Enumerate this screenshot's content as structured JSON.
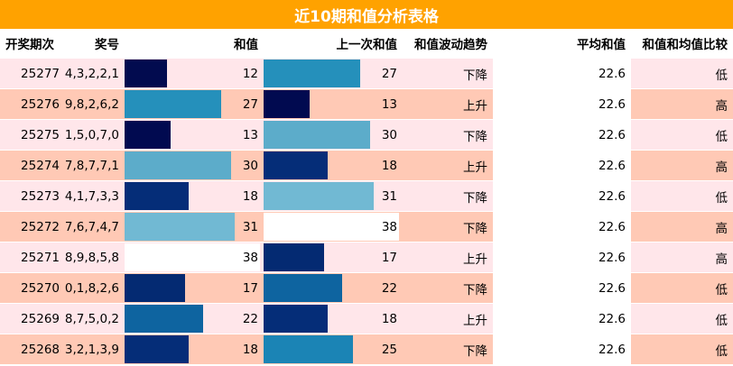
{
  "title": "近10期和值分析表格",
  "colors": {
    "title_bg": "#ffa200",
    "row_light": "#ffe6ea",
    "row_dark": "#ffc9b5",
    "bar_scale": {
      "12": "#020b4f",
      "13": "#010a50",
      "17": "#042a72",
      "18": "#052d78",
      "22": "#0e64a0",
      "25": "#1b84b5",
      "27": "#2590bb",
      "30": "#5cacca",
      "31": "#71b9d3",
      "38": "#ffffff"
    }
  },
  "columns": {
    "period": "开奖期次",
    "numbers": "奖号",
    "sum": "和值",
    "prev_sum": "上一次和值",
    "trend": "和值波动趋势",
    "avg": "平均和值",
    "compare": "和值和均值比较"
  },
  "bar_max": 38,
  "rows": [
    {
      "period": "25277",
      "numbers": "4,3,2,2,1",
      "sum": 12,
      "prev_sum": 27,
      "trend": "下降",
      "avg": "22.6",
      "compare": "低"
    },
    {
      "period": "25276",
      "numbers": "9,8,2,6,2",
      "sum": 27,
      "prev_sum": 13,
      "trend": "上升",
      "avg": "22.6",
      "compare": "高"
    },
    {
      "period": "25275",
      "numbers": "1,5,0,7,0",
      "sum": 13,
      "prev_sum": 30,
      "trend": "下降",
      "avg": "22.6",
      "compare": "低"
    },
    {
      "period": "25274",
      "numbers": "7,8,7,7,1",
      "sum": 30,
      "prev_sum": 18,
      "trend": "上升",
      "avg": "22.6",
      "compare": "高"
    },
    {
      "period": "25273",
      "numbers": "4,1,7,3,3",
      "sum": 18,
      "prev_sum": 31,
      "trend": "下降",
      "avg": "22.6",
      "compare": "低"
    },
    {
      "period": "25272",
      "numbers": "7,6,7,4,7",
      "sum": 31,
      "prev_sum": 38,
      "trend": "下降",
      "avg": "22.6",
      "compare": "高"
    },
    {
      "period": "25271",
      "numbers": "8,9,8,5,8",
      "sum": 38,
      "prev_sum": 17,
      "trend": "上升",
      "avg": "22.6",
      "compare": "高"
    },
    {
      "period": "25270",
      "numbers": "0,1,8,2,6",
      "sum": 17,
      "prev_sum": 22,
      "trend": "下降",
      "avg": "22.6",
      "compare": "低"
    },
    {
      "period": "25269",
      "numbers": "8,7,5,0,2",
      "sum": 22,
      "prev_sum": 18,
      "trend": "上升",
      "avg": "22.6",
      "compare": "低"
    },
    {
      "period": "25268",
      "numbers": "3,2,1,3,9",
      "sum": 18,
      "prev_sum": 25,
      "trend": "下降",
      "avg": "22.6",
      "compare": "低"
    }
  ]
}
